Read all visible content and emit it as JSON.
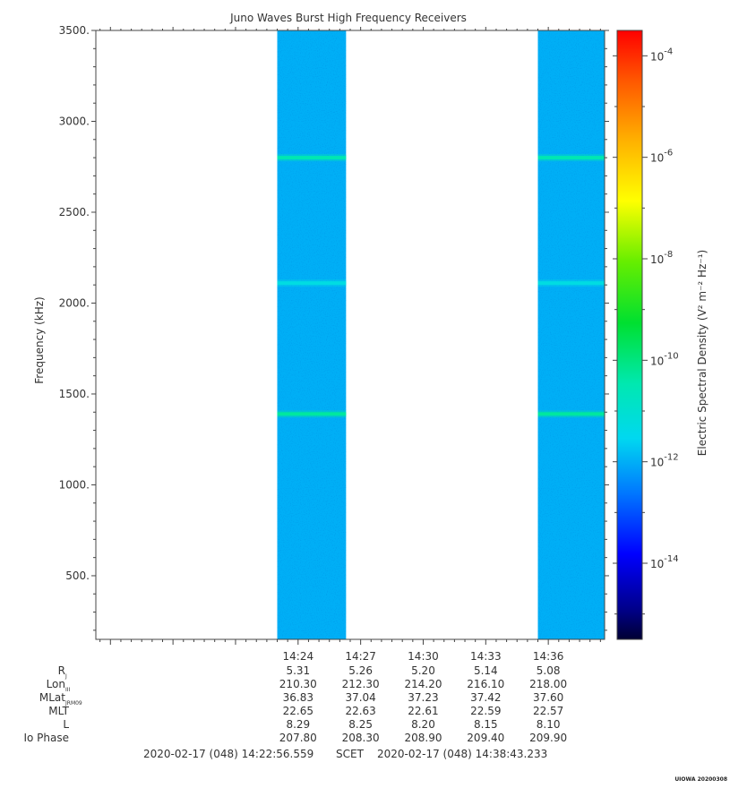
{
  "chart_data": {
    "type": "heatmap",
    "title": "Juno Waves Burst High Frequency Receivers",
    "ylabel": "Frequency (kHz)",
    "ylim": [
      150,
      3500
    ],
    "yticks": [
      "500.",
      "1000.",
      "1500.",
      "2000.",
      "2500.",
      "3000.",
      "3500."
    ],
    "ytick_values": [
      500,
      1000,
      1500,
      2000,
      2500,
      3000,
      3500
    ],
    "xticks": [
      "14:24",
      "14:27",
      "14:30",
      "14:33",
      "14:36"
    ],
    "x_range_minutes": [
      14.3,
      38.7
    ],
    "xtick_minutes": [
      24,
      27,
      30,
      33,
      36
    ],
    "data_segments_minutes": [
      [
        23.0,
        26.3
      ],
      [
        35.5,
        38.7
      ]
    ],
    "background_log10_density": -12,
    "emission_lines": [
      {
        "frequency_khz": 2800,
        "log10_density": -10.5
      },
      {
        "frequency_khz": 2110,
        "log10_density": -11.3
      },
      {
        "frequency_khz": 1390,
        "log10_density": -10.3
      }
    ],
    "colorbar": {
      "label": "Electric Spectral Density (V² m⁻² Hz⁻¹)",
      "log10_range": [
        -15.5,
        -3.5
      ],
      "ticks": [
        {
          "base": "10",
          "exp": "-4",
          "value": -4
        },
        {
          "base": "10",
          "exp": "-6",
          "value": -6
        },
        {
          "base": "10",
          "exp": "-8",
          "value": -8
        },
        {
          "base": "10",
          "exp": "-10",
          "value": -10
        },
        {
          "base": "10",
          "exp": "-12",
          "value": -12
        },
        {
          "base": "10",
          "exp": "-14",
          "value": -14
        }
      ]
    },
    "ephemeris": {
      "rows": [
        {
          "label": "R",
          "sub": "J",
          "values": [
            "5.31",
            "5.26",
            "5.20",
            "5.14",
            "5.08"
          ]
        },
        {
          "label": "Lon",
          "sub": "III",
          "values": [
            "210.30",
            "212.30",
            "214.20",
            "216.10",
            "218.00"
          ]
        },
        {
          "label": "MLat",
          "sub": "JRM09",
          "values": [
            "36.83",
            "37.04",
            "37.23",
            "37.42",
            "37.60"
          ]
        },
        {
          "label": "MLT",
          "sub": "",
          "values": [
            "22.65",
            "22.63",
            "22.61",
            "22.59",
            "22.57"
          ]
        },
        {
          "label": "L",
          "sub": "",
          "values": [
            "8.29",
            "8.25",
            "8.20",
            "8.15",
            "8.10"
          ]
        },
        {
          "label": "Io Phase",
          "sub": "",
          "values": [
            "207.80",
            "208.30",
            "208.90",
            "209.40",
            "209.90"
          ]
        }
      ]
    },
    "time_range": {
      "start": "2020-02-17 (048) 14:22:56.559",
      "frame": "SCET",
      "end": "2020-02-17 (048) 14:38:43.233"
    },
    "footer_tag": "UIOWA 20200308"
  }
}
